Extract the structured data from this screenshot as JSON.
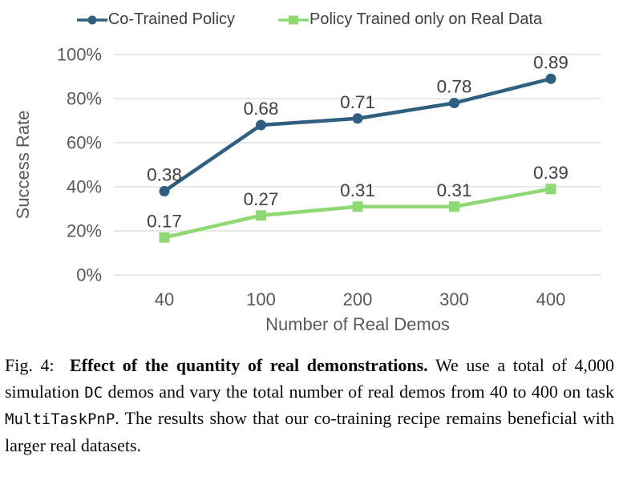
{
  "figure": {
    "caption_segments": [
      {
        "text": "Fig. 4:  ",
        "style": "normal"
      },
      {
        "text": "Effect of the quantity of real demonstrations.",
        "style": "bold"
      },
      {
        "text": " We use a total of 4,000 simulation ",
        "style": "normal"
      },
      {
        "text": "DC",
        "style": "mono"
      },
      {
        "text": " demos and vary the total number of real demos from 40 to 400 on task ",
        "style": "normal"
      },
      {
        "text": "MultiTaskPnP",
        "style": "mono"
      },
      {
        "text": ". The results show that our co-training recipe remains beneficial with larger real datasets.",
        "style": "normal"
      }
    ]
  },
  "chart_data": {
    "type": "line",
    "categories": [
      "40",
      "100",
      "200",
      "300",
      "400"
    ],
    "series": [
      {
        "name": "Co-Trained Policy",
        "values": [
          0.38,
          0.68,
          0.71,
          0.78,
          0.89
        ],
        "color": "#2E5F80",
        "marker": "circle"
      },
      {
        "name": "Policy Trained only on Real Data",
        "values": [
          0.17,
          0.27,
          0.31,
          0.31,
          0.39
        ],
        "color": "#8ED973",
        "marker": "square"
      }
    ],
    "xlabel": "Number of Real Demos",
    "ylabel": "Success Rate",
    "ylim": [
      0,
      1
    ],
    "y_ticks": [
      {
        "value": 0.0,
        "label": "0%"
      },
      {
        "value": 0.2,
        "label": "20%"
      },
      {
        "value": 0.4,
        "label": "40%"
      },
      {
        "value": 0.6,
        "label": "60%"
      },
      {
        "value": 0.8,
        "label": "80%"
      },
      {
        "value": 1.0,
        "label": "100%"
      }
    ],
    "grid": "horizontal",
    "legend_position": "top",
    "data_labels": true,
    "colors": {
      "gridline": "#D9D9D9",
      "tick_text": "#595959",
      "axis_title_text": "#595959",
      "data_label_text": "#404040",
      "legend_text": "#404040"
    }
  }
}
